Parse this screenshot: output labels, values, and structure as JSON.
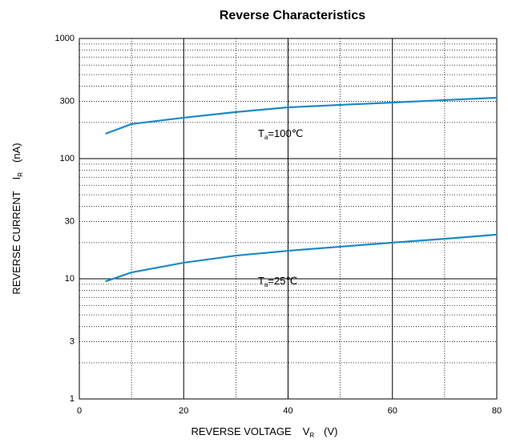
{
  "chart_data": {
    "type": "line",
    "title": "Reverse    Characteristics",
    "xlabel": {
      "main": "REVERSE VOLTAGE",
      "symbol": "V",
      "sub": "R",
      "unit": "(V)"
    },
    "ylabel": {
      "main": "REVERSE CURRENT",
      "symbol": "I",
      "sub": "R",
      "unit": "(nA)"
    },
    "xlim": [
      0,
      80
    ],
    "xticks": [
      0,
      20,
      40,
      60,
      80
    ],
    "xminor": [
      10,
      30,
      50,
      70
    ],
    "ylim": [
      1,
      1000
    ],
    "yticks": [
      1,
      3,
      10,
      30,
      100,
      300,
      1000
    ],
    "yminor": [
      2,
      4,
      5,
      6,
      7,
      8,
      9,
      20,
      40,
      50,
      60,
      70,
      80,
      90,
      200,
      400,
      500,
      600,
      700,
      800,
      900
    ],
    "yscale": "log",
    "grid": true,
    "x": [
      5,
      10,
      20,
      30,
      40,
      50,
      60,
      70,
      80
    ],
    "series": [
      {
        "name": "100",
        "color": "#1a8ac6",
        "values": [
          161,
          194,
          219,
          244,
          267,
          280,
          293,
          307,
          321
        ]
      },
      {
        "name": "25",
        "color": "#1a8ac6",
        "values": [
          9.5,
          11.3,
          13.6,
          15.6,
          17.1,
          18.5,
          20,
          21.5,
          23.3
        ]
      }
    ],
    "annotations": [
      {
        "symbol": "T",
        "sub": "a",
        "text": "=100℃"
      },
      {
        "symbol": "T",
        "sub": "a",
        "text": "=25℃"
      }
    ]
  }
}
